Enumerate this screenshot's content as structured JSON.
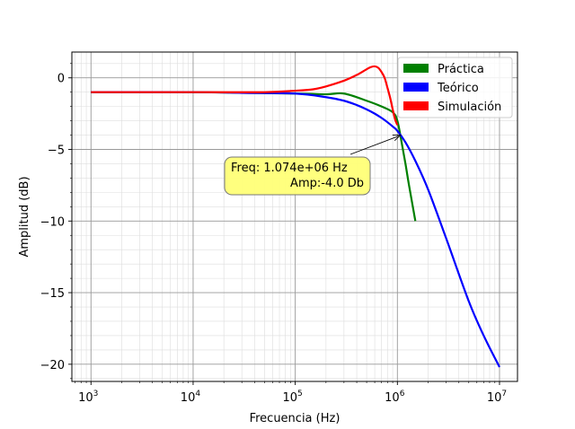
{
  "chart_data": {
    "type": "line",
    "title": "",
    "xlabel": "Frecuencia (Hz)",
    "ylabel": "Amplitud (dB)",
    "xscale": "log",
    "xlim": [
      650,
      15000000
    ],
    "ylim": [
      -21.2,
      1.8
    ],
    "grid": "major and minor",
    "legend_position": "top-right",
    "x_ticks": [
      {
        "value": 1000,
        "base": "10",
        "exp": "3"
      },
      {
        "value": 10000,
        "base": "10",
        "exp": "4"
      },
      {
        "value": 100000,
        "base": "10",
        "exp": "5"
      },
      {
        "value": 1000000,
        "base": "10",
        "exp": "6"
      },
      {
        "value": 10000000,
        "base": "10",
        "exp": "7"
      }
    ],
    "y_ticks": [
      {
        "value": 0,
        "label": "0"
      },
      {
        "value": -5,
        "label": "−5"
      },
      {
        "value": -10,
        "label": "−10"
      },
      {
        "value": -15,
        "label": "−15"
      },
      {
        "value": -20,
        "label": "−20"
      }
    ],
    "series": [
      {
        "name": "Práctica",
        "color": "#008000",
        "x": [
          1000,
          10000,
          100000,
          200000,
          300000,
          500000,
          700000,
          900000,
          1000000,
          1100000,
          1200000,
          1300000,
          1500000
        ],
        "y": [
          -1.0,
          -1.0,
          -1.1,
          -1.15,
          -1.1,
          -1.6,
          -2.0,
          -2.4,
          -3.0,
          -4.5,
          -6.0,
          -7.5,
          -10.0
        ]
      },
      {
        "name": "Teórico",
        "color": "#0000ff",
        "x": [
          1000,
          10000,
          30000,
          100000,
          200000,
          300000,
          400000,
          500000,
          600000,
          700000,
          800000,
          900000,
          1000000,
          1200000,
          1500000,
          2000000,
          3000000,
          5000000,
          7000000,
          10000000
        ],
        "y": [
          -1.0,
          -1.0,
          -1.05,
          -1.1,
          -1.35,
          -1.6,
          -1.9,
          -2.2,
          -2.5,
          -2.8,
          -3.1,
          -3.4,
          -3.7,
          -4.5,
          -5.8,
          -7.8,
          -11.2,
          -15.6,
          -18.0,
          -20.2
        ]
      },
      {
        "name": "Simulación",
        "color": "#ff0000",
        "x": [
          1000,
          10000,
          50000,
          100000,
          150000,
          200000,
          300000,
          400000,
          500000,
          550000,
          600000,
          650000,
          700000,
          750000,
          800000,
          850000,
          900000,
          950000,
          1000000
        ],
        "y": [
          -1.0,
          -1.0,
          -1.0,
          -0.9,
          -0.8,
          -0.6,
          -0.2,
          0.2,
          0.6,
          0.75,
          0.8,
          0.7,
          0.4,
          0.0,
          -0.7,
          -1.4,
          -2.2,
          -2.9,
          -3.3
        ]
      }
    ],
    "annotation": {
      "line1": "Freq: 1.074e+06  Hz",
      "line2": "Amp:-4.0 Db",
      "point_x": 1074000,
      "point_y": -4.0,
      "box_color": "#ffff77"
    }
  }
}
